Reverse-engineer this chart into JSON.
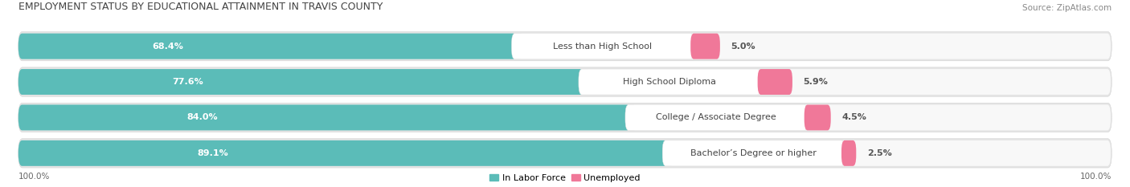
{
  "title": "EMPLOYMENT STATUS BY EDUCATIONAL ATTAINMENT IN TRAVIS COUNTY",
  "source": "Source: ZipAtlas.com",
  "categories": [
    "Less than High School",
    "High School Diploma",
    "College / Associate Degree",
    "Bachelor’s Degree or higher"
  ],
  "labor_force": [
    68.4,
    77.6,
    84.0,
    89.1
  ],
  "unemployed": [
    5.0,
    5.9,
    4.5,
    2.5
  ],
  "labor_force_color": "#5bbcb8",
  "unemployed_color": "#f07899",
  "row_bg_color": "#e8e8e8",
  "label_bg_color": "#f7f7f7",
  "axis_label_left": "100.0%",
  "axis_label_right": "100.0%",
  "legend_labor": "In Labor Force",
  "legend_unemployed": "Unemployed",
  "title_fontsize": 9,
  "bar_fontsize": 8,
  "cat_fontsize": 8,
  "source_fontsize": 7.5,
  "axis_fontsize": 7.5
}
